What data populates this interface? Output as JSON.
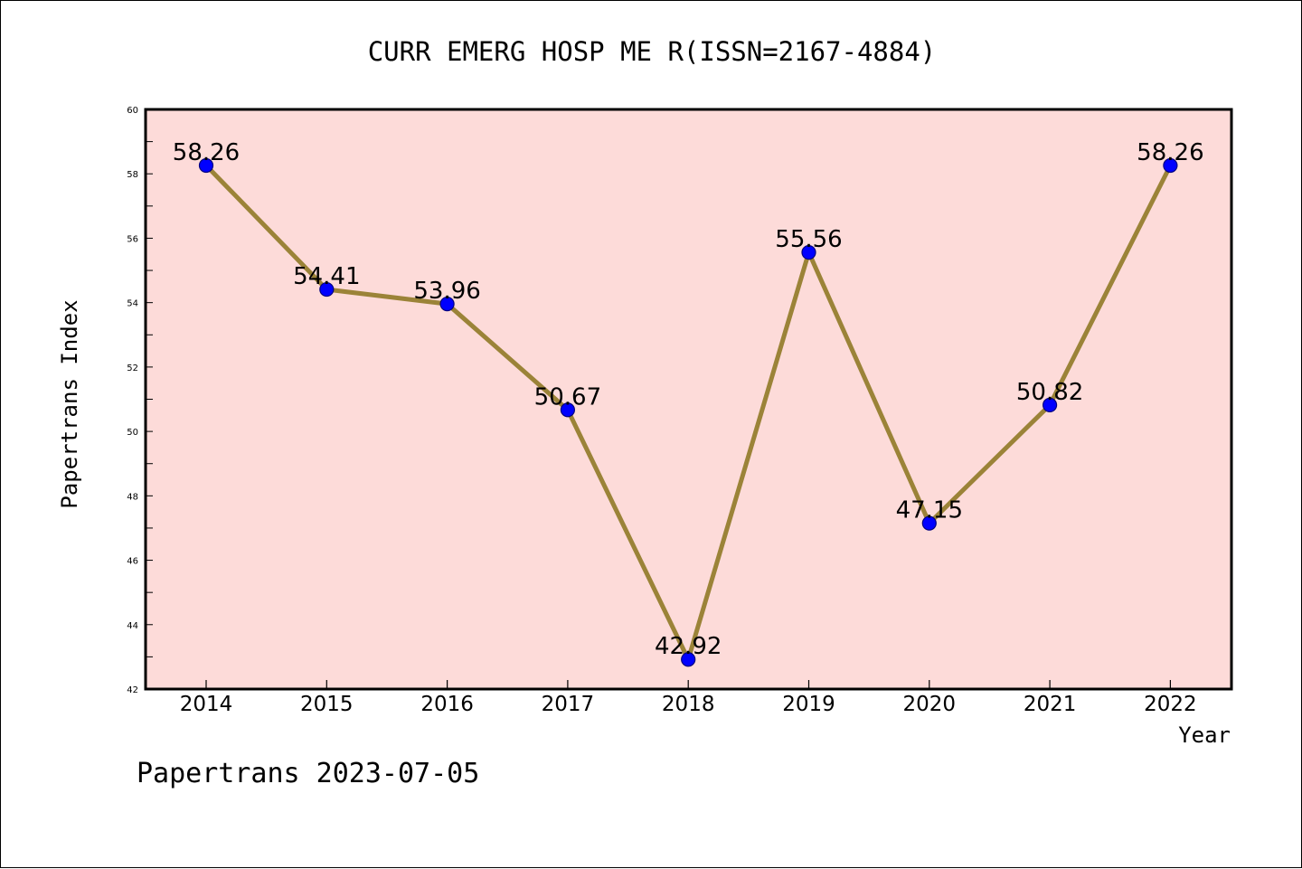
{
  "chart_data": {
    "type": "line",
    "title": "CURR EMERG HOSP ME R(ISSN=2167-4884)",
    "xlabel": "Year",
    "ylabel": "Papertrans Index",
    "categories": [
      "2014",
      "2015",
      "2016",
      "2017",
      "2018",
      "2019",
      "2020",
      "2021",
      "2022"
    ],
    "series": [
      {
        "values": [
          58.26,
          54.41,
          53.96,
          50.67,
          42.92,
          55.56,
          47.15,
          50.82,
          58.26
        ],
        "data_labels": [
          "58.26",
          "54.41",
          "53.96",
          "50.67",
          "42.92",
          "55.56",
          "47.15",
          "50.82",
          "58.26"
        ]
      }
    ],
    "ylim": [
      42,
      60
    ],
    "yticks": [
      "42",
      "44",
      "46",
      "48",
      "50",
      "52",
      "54",
      "56",
      "58",
      "60"
    ],
    "grid": false,
    "colors": {
      "plot_background": "#fddbd9",
      "line": "#9b8338",
      "marker": "#0000ff",
      "marker_edge": "#000080",
      "axes": "#000000"
    }
  },
  "footer": "Papertrans 2023-07-05"
}
